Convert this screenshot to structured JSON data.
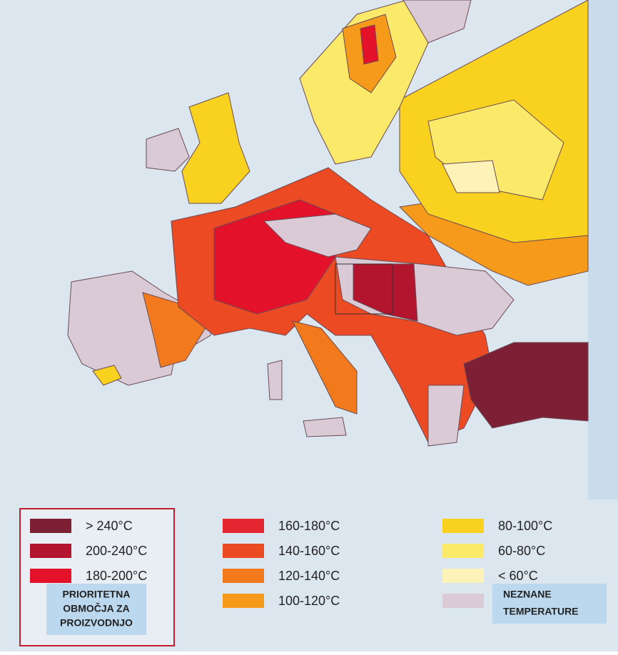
{
  "legend": {
    "items": [
      {
        "label": "> 240°C",
        "color": "#7d1f35"
      },
      {
        "label": "200-240°C",
        "color": "#b3152e"
      },
      {
        "label": "180-200°C",
        "color": "#e3122a"
      },
      {
        "label": "160-180°C",
        "color": "#e42630"
      },
      {
        "label": "140-160°C",
        "color": "#ec4a22"
      },
      {
        "label": "120-140°C",
        "color": "#f27a1c"
      },
      {
        "label": "100-120°C",
        "color": "#f59a1a"
      },
      {
        "label": "80-100°C",
        "color": "#f8d21e"
      },
      {
        "label": "60-80°C",
        "color": "#fbe96a"
      },
      {
        "label": "< 60°C",
        "color": "#fdf3b8"
      }
    ],
    "unknown": {
      "color": "#d9cad6",
      "lines": [
        "NEZNANE",
        "TEMPERATURE"
      ]
    },
    "priority": {
      "lines": [
        "PRIORITETNA",
        "OBMOČJA ZA",
        "PROIZVODNJO"
      ]
    }
  }
}
